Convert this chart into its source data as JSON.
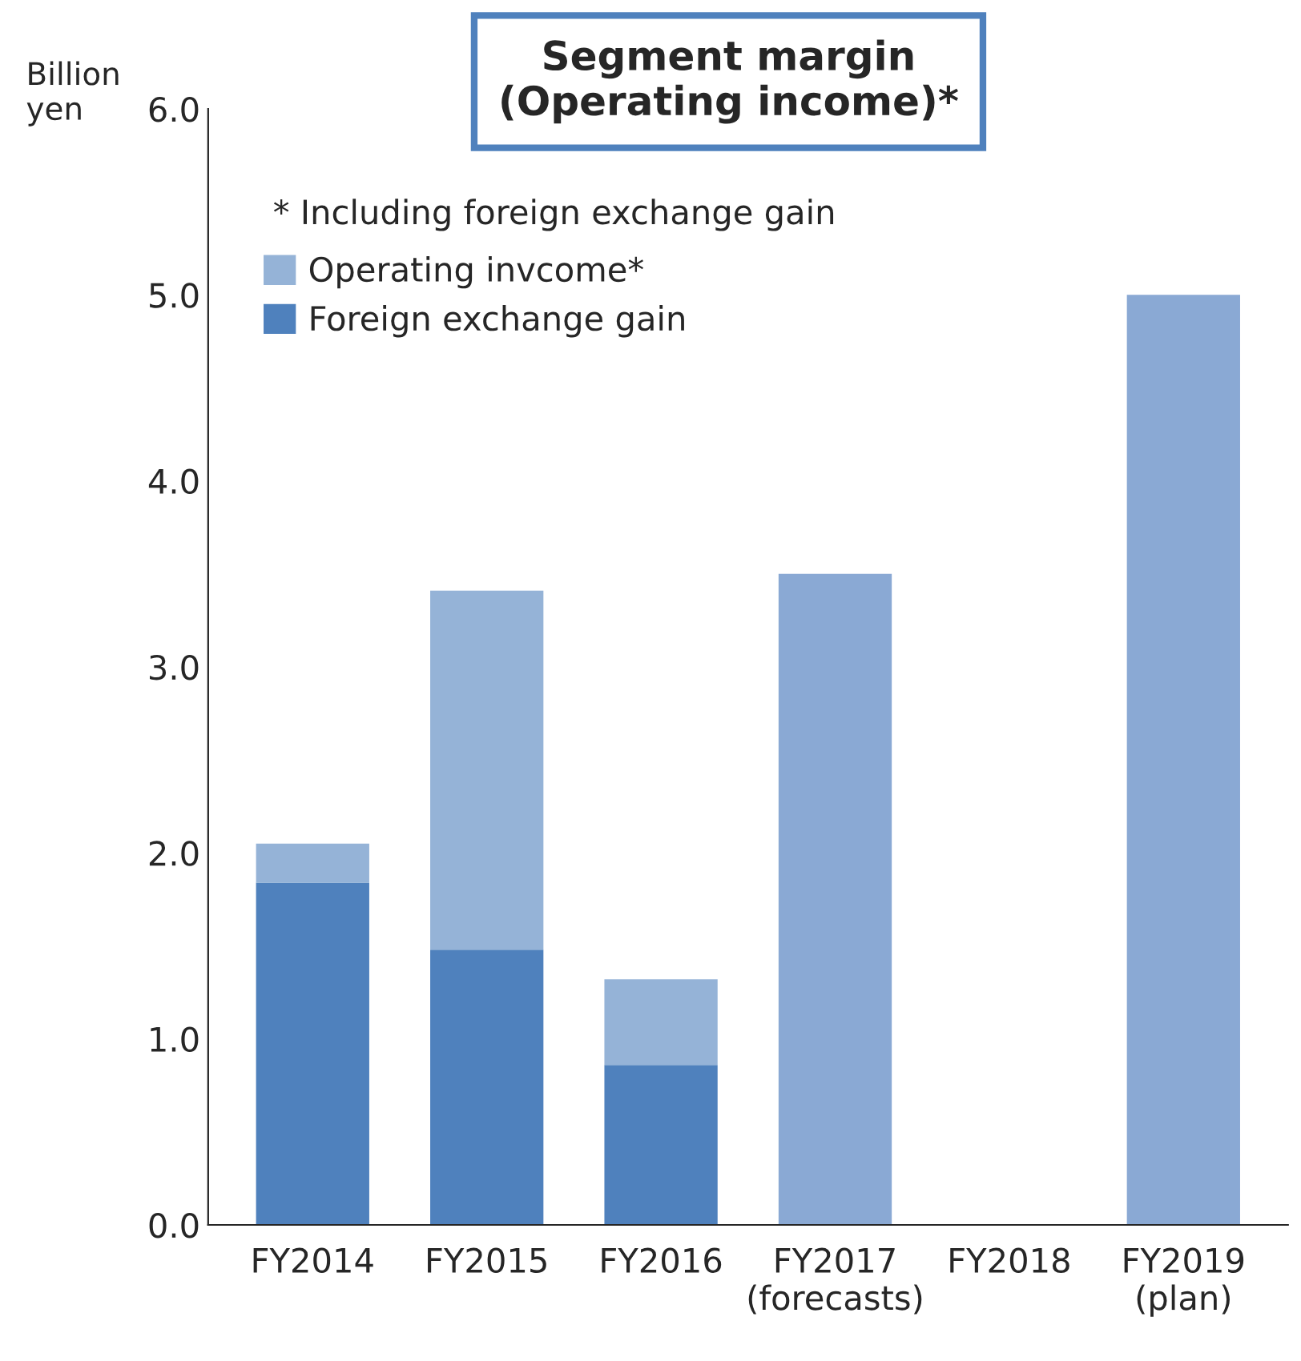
{
  "chart_data": {
    "type": "bar",
    "title": "Segment margin\n(Operating income)*",
    "ylabel": "Billion\nyen",
    "categories": [
      "FY2014",
      "FY2015",
      "FY2016",
      "FY2017\n(forecasts)",
      "FY2018",
      "FY2019\n(plan)"
    ],
    "stacked": true,
    "series": [
      {
        "name": "Foreign exchange gain",
        "color": "#4f81bd",
        "values": [
          1.84,
          1.48,
          0.86,
          null,
          null,
          null
        ]
      },
      {
        "name": "Operating invcome*",
        "color": "#95b3d7",
        "colors": [
          "#95b3d7",
          "#95b3d7",
          "#95b3d7",
          "#8aa9d4",
          "#8aa9d4",
          "#8aa9d4"
        ],
        "values": [
          0.21,
          1.93,
          0.46,
          3.5,
          null,
          5.0
        ]
      }
    ],
    "ylim": [
      0,
      6
    ],
    "yticks": [
      {
        "value": 0,
        "label": "0.0"
      },
      {
        "value": 1,
        "label": "1.0"
      },
      {
        "value": 2,
        "label": "2.0"
      },
      {
        "value": 3,
        "label": "3.0"
      },
      {
        "value": 4,
        "label": "4.0"
      },
      {
        "value": 5,
        "label": "5.0"
      },
      {
        "value": 6,
        "label": "6.0"
      }
    ],
    "annotations": [
      "* Including foreign exchange gain"
    ],
    "legend": "top left",
    "grid": false
  }
}
